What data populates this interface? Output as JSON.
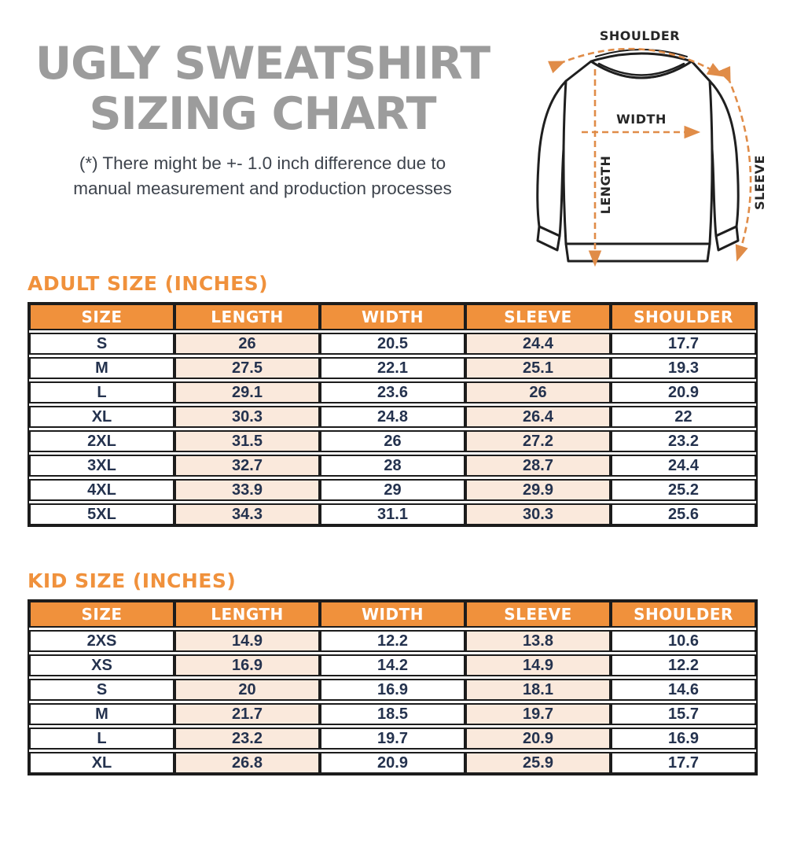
{
  "header": {
    "title_line1": "UGLY SWEATSHIRT",
    "title_line2": "SIZING CHART",
    "note_line1": "(*) There might be +- 1.0 inch difference due to",
    "note_line2": "manual measurement and production processes"
  },
  "diagram": {
    "shoulder_label": "SHOULDER",
    "width_label": "WIDTH",
    "length_label": "LENGTH",
    "sleeve_label": "SLEEVE"
  },
  "adult_table": {
    "title": "ADULT SIZE (INCHES)",
    "columns": [
      "SIZE",
      "LENGTH",
      "WIDTH",
      "SLEEVE",
      "SHOULDER"
    ],
    "rows": [
      [
        "S",
        "26",
        "20.5",
        "24.4",
        "17.7"
      ],
      [
        "M",
        "27.5",
        "22.1",
        "25.1",
        "19.3"
      ],
      [
        "L",
        "29.1",
        "23.6",
        "26",
        "20.9"
      ],
      [
        "XL",
        "30.3",
        "24.8",
        "26.4",
        "22"
      ],
      [
        "2XL",
        "31.5",
        "26",
        "27.2",
        "23.2"
      ],
      [
        "3XL",
        "32.7",
        "28",
        "28.7",
        "24.4"
      ],
      [
        "4XL",
        "33.9",
        "29",
        "29.9",
        "25.2"
      ],
      [
        "5XL",
        "34.3",
        "31.1",
        "30.3",
        "25.6"
      ]
    ]
  },
  "kid_table": {
    "title": "KID SIZE (INCHES)",
    "columns": [
      "SIZE",
      "LENGTH",
      "WIDTH",
      "SLEEVE",
      "SHOULDER"
    ],
    "rows": [
      [
        "2XS",
        "14.9",
        "12.2",
        "13.8",
        "10.6"
      ],
      [
        "XS",
        "16.9",
        "14.2",
        "14.9",
        "12.2"
      ],
      [
        "S",
        "20",
        "16.9",
        "18.1",
        "14.6"
      ],
      [
        "M",
        "21.7",
        "18.5",
        "19.7",
        "15.7"
      ],
      [
        "L",
        "23.2",
        "19.7",
        "20.9",
        "16.9"
      ],
      [
        "XL",
        "26.8",
        "20.9",
        "25.9",
        "17.7"
      ]
    ]
  },
  "colors": {
    "accent_orange": "#F0913C",
    "peach": "#FAE9DC",
    "navy": "#24324E",
    "title_gray": "#9C9C9C",
    "line_dark": "#1C1C1C",
    "note_dark": "#3D434C",
    "diagram_dash": "#E08C48"
  }
}
